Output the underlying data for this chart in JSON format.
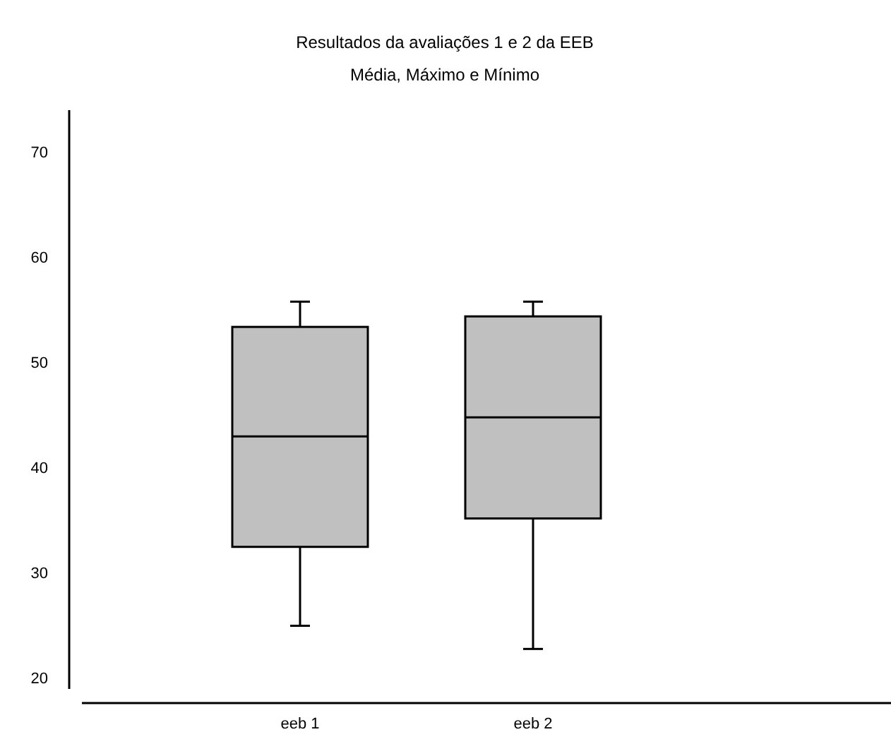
{
  "chart_data": {
    "type": "box",
    "title": "Resultados da avaliações 1 e 2 da EEB",
    "subtitle": "Média, Máximo e Mínimo",
    "categories": [
      "eeb 1",
      "eeb 2"
    ],
    "color": "#c0c0c0",
    "ylim": [
      19,
      74
    ],
    "yticks": [
      20,
      30,
      40,
      50,
      60,
      70
    ],
    "grid": false,
    "boxes": [
      {
        "low": 25.0,
        "q1": 32.5,
        "median": 43.0,
        "q3": 53.4,
        "high": 55.8
      },
      {
        "low": 22.8,
        "q1": 35.2,
        "median": 44.8,
        "q3": 54.4,
        "high": 55.8
      }
    ]
  }
}
